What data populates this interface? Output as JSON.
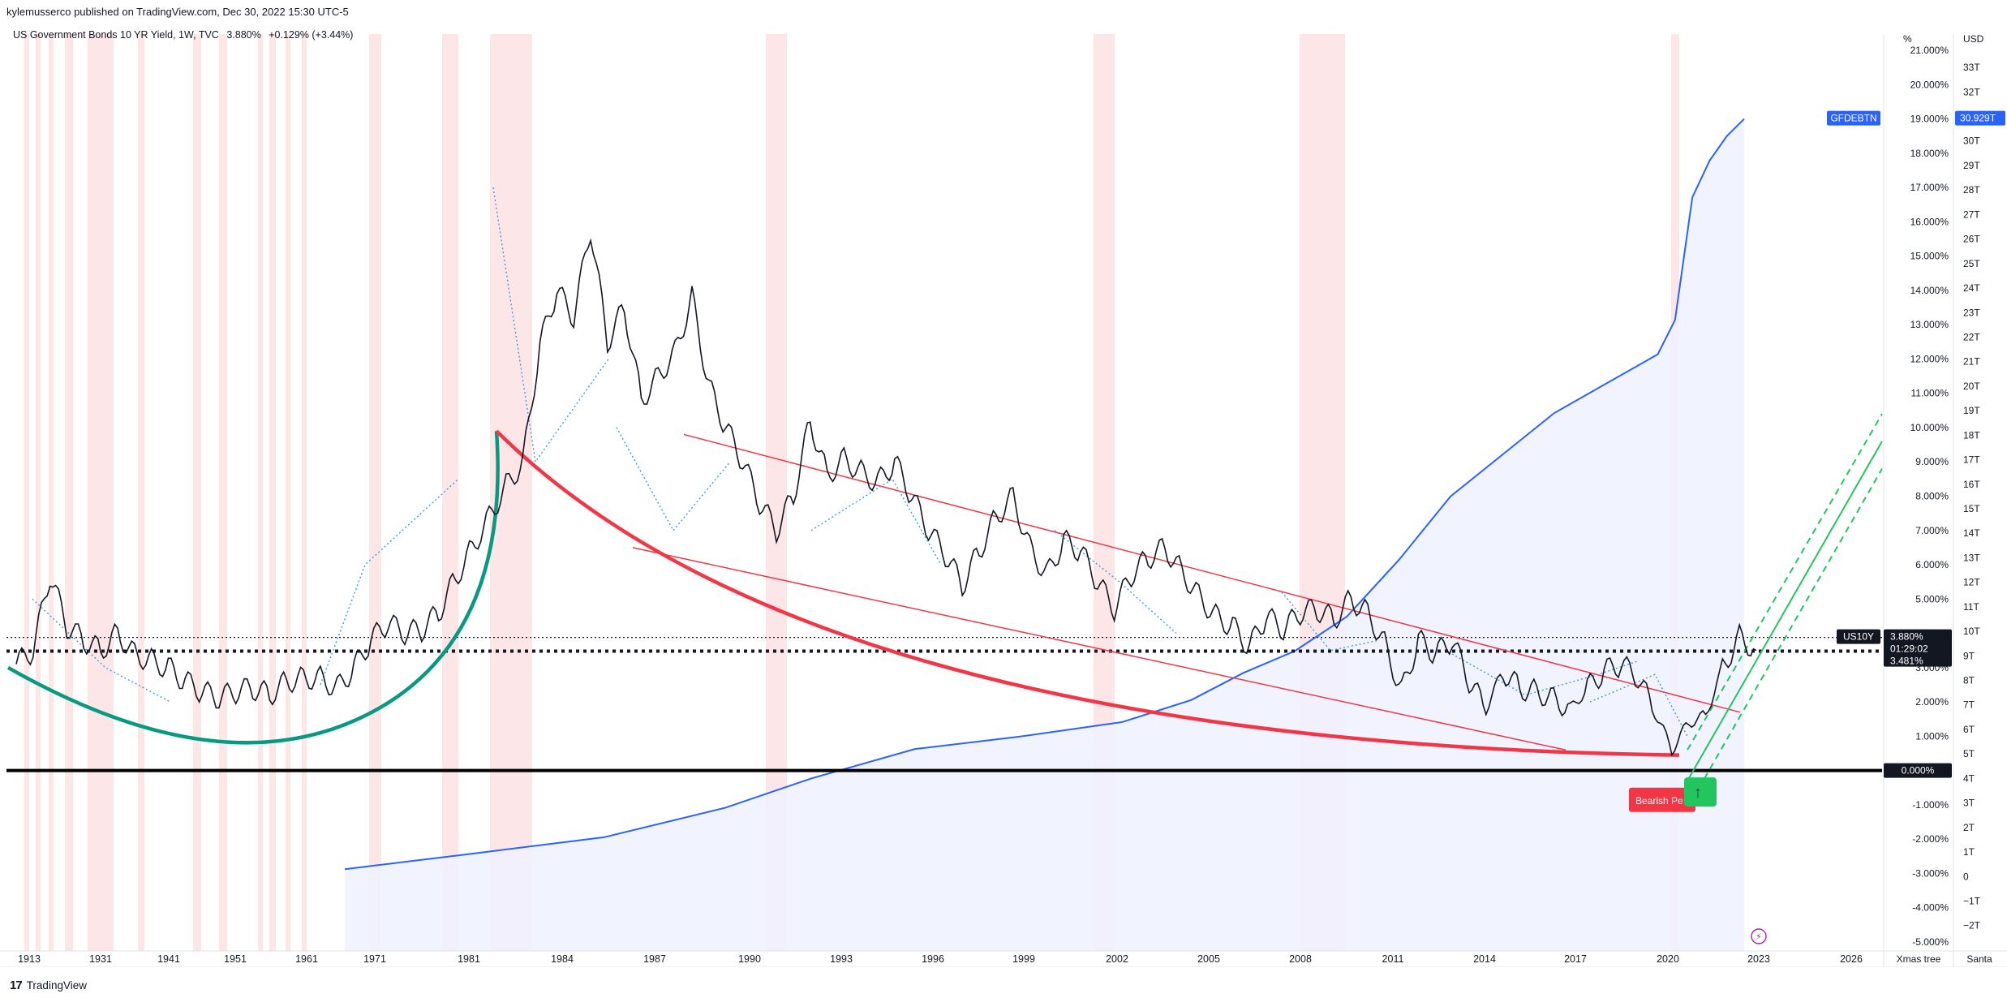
{
  "publisher_line": "kylemusserco published on TradingView.com, Dec 30, 2022 15:30 UTC-5",
  "header": {
    "symbol": "US Government Bonds 10 YR Yield, 1W, TVC",
    "last": "3.880%",
    "change": "+0.129% (+3.44%)"
  },
  "brand": {
    "logo": "17",
    "name": "TradingView"
  },
  "colors": {
    "yield": "#131722",
    "debt": "#2962ff",
    "debt_fill": "#eef1ff",
    "channel": "#f23645",
    "bowl": "#089981",
    "recession": "#fde3e5",
    "projection": "#22c55e",
    "fib": "#3a9bd9"
  },
  "chart_data": {
    "type": "line",
    "title": "US Government Bonds 10 YR Yield, 1W, TVC",
    "x_labels": [
      "1913",
      "1931",
      "1941",
      "1951",
      "1961",
      "1971",
      "1981",
      "1984",
      "1987",
      "1990",
      "1993",
      "1996",
      "1999",
      "2002",
      "2005",
      "2008",
      "2011",
      "2014",
      "2017",
      "2020",
      "2023",
      "2026"
    ],
    "y_left_unit": "%",
    "y_left_ticks": [
      "21.000%",
      "20.000%",
      "19.000%",
      "18.000%",
      "17.000%",
      "16.000%",
      "15.000%",
      "14.000%",
      "13.000%",
      "12.000%",
      "11.000%",
      "10.000%",
      "9.000%",
      "8.000%",
      "7.000%",
      "6.000%",
      "5.000%",
      "4.000%",
      "3.000%",
      "2.000%",
      "1.000%",
      "0.000%",
      "-1.000%",
      "-2.000%",
      "-3.000%",
      "-4.000%",
      "-5.000%"
    ],
    "y_left_range": [
      -5.3,
      21.5
    ],
    "y_right_unit": "USD",
    "y_right_ticks": [
      "33T",
      "32T",
      "31T",
      "30T",
      "29T",
      "28T",
      "27T",
      "26T",
      "25T",
      "24T",
      "23T",
      "22T",
      "21T",
      "20T",
      "19T",
      "18T",
      "17T",
      "16T",
      "15T",
      "14T",
      "13T",
      "12T",
      "11T",
      "10T",
      "9T",
      "8T",
      "7T",
      "6T",
      "5T",
      "4T",
      "3T",
      "2T",
      "1T",
      "0",
      "−1T",
      "−2T"
    ],
    "series": [
      {
        "name": "US10Y",
        "values": [
          [
            0,
            3.1
          ],
          [
            1,
            3.5
          ],
          [
            2,
            5.7
          ],
          [
            3,
            4.2
          ],
          [
            4,
            3.8
          ],
          [
            5,
            3.5
          ],
          [
            6,
            4.0
          ],
          [
            7,
            3.4
          ],
          [
            8,
            3.2
          ],
          [
            9,
            3.0
          ],
          [
            10,
            2.6
          ],
          [
            11,
            2.3
          ],
          [
            12,
            2.1
          ],
          [
            13,
            2.3
          ],
          [
            14,
            2.4
          ],
          [
            15,
            2.2
          ],
          [
            16,
            2.6
          ],
          [
            17,
            2.7
          ],
          [
            18,
            2.7
          ],
          [
            19,
            2.4
          ],
          [
            20,
            3.0
          ],
          [
            21,
            3.8
          ],
          [
            22,
            4.3
          ],
          [
            23,
            4.0
          ],
          [
            24,
            4.1
          ],
          [
            25,
            4.6
          ],
          [
            26,
            5.6
          ],
          [
            27,
            6.5
          ],
          [
            28,
            7.4
          ],
          [
            29,
            8.3
          ],
          [
            30,
            9.0
          ],
          [
            31,
            12.4
          ],
          [
            32,
            14.0
          ],
          [
            33,
            13.2
          ],
          [
            34,
            15.8
          ],
          [
            35,
            12.5
          ],
          [
            36,
            13.5
          ],
          [
            37,
            10.8
          ],
          [
            38,
            11.5
          ],
          [
            39,
            12.2
          ],
          [
            40,
            13.8
          ],
          [
            41,
            11.2
          ],
          [
            42,
            10.0
          ],
          [
            43,
            9.0
          ],
          [
            44,
            7.8
          ],
          [
            45,
            7.0
          ],
          [
            46,
            8.0
          ],
          [
            47,
            10.2
          ],
          [
            48,
            8.6
          ],
          [
            49,
            9.1
          ],
          [
            50,
            8.7
          ],
          [
            51,
            8.4
          ],
          [
            52,
            9.0
          ],
          [
            53,
            8.0
          ],
          [
            54,
            7.0
          ],
          [
            55,
            6.3
          ],
          [
            56,
            5.4
          ],
          [
            57,
            6.4
          ],
          [
            58,
            7.4
          ],
          [
            59,
            8.0
          ],
          [
            60,
            6.5
          ],
          [
            61,
            5.7
          ],
          [
            62,
            6.7
          ],
          [
            63,
            6.4
          ],
          [
            64,
            5.5
          ],
          [
            65,
            4.7
          ],
          [
            66,
            5.7
          ],
          [
            67,
            6.2
          ],
          [
            68,
            6.5
          ],
          [
            69,
            5.8
          ],
          [
            70,
            5.1
          ],
          [
            71,
            4.5
          ],
          [
            72,
            4.2
          ],
          [
            73,
            3.6
          ],
          [
            74,
            4.5
          ],
          [
            75,
            4.1
          ],
          [
            76,
            4.6
          ],
          [
            77,
            4.7
          ],
          [
            78,
            4.4
          ],
          [
            79,
            5.0
          ],
          [
            80,
            4.6
          ],
          [
            81,
            3.7
          ],
          [
            82,
            2.3
          ],
          [
            83,
            3.8
          ],
          [
            84,
            3.4
          ],
          [
            85,
            3.8
          ],
          [
            86,
            2.6
          ],
          [
            87,
            1.8
          ],
          [
            88,
            2.9
          ],
          [
            89,
            2.4
          ],
          [
            90,
            2.3
          ],
          [
            91,
            2.1
          ],
          [
            92,
            1.8
          ],
          [
            93,
            2.4
          ],
          [
            94,
            2.9
          ],
          [
            95,
            3.1
          ],
          [
            96,
            2.7
          ],
          [
            97,
            1.7
          ],
          [
            98,
            0.6
          ],
          [
            99,
            1.4
          ],
          [
            100,
            1.6
          ],
          [
            101,
            3.0
          ],
          [
            102,
            3.9
          ],
          [
            103,
            3.5
          ]
        ]
      },
      {
        "name": "GFDEBTN",
        "unit": "USD trillions",
        "values": [
          [
            23,
            0.3
          ],
          [
            30,
            0.9
          ],
          [
            38,
            1.6
          ],
          [
            45,
            2.8
          ],
          [
            50,
            4.0
          ],
          [
            56,
            5.2
          ],
          [
            62,
            5.7
          ],
          [
            68,
            6.3
          ],
          [
            72,
            7.2
          ],
          [
            75,
            8.3
          ],
          [
            78,
            9.2
          ],
          [
            81,
            10.6
          ],
          [
            84,
            12.9
          ],
          [
            87,
            15.5
          ],
          [
            90,
            17.2
          ],
          [
            93,
            18.9
          ],
          [
            96,
            20.1
          ],
          [
            99,
            21.3
          ],
          [
            100,
            22.7
          ],
          [
            101,
            27.7
          ],
          [
            102,
            29.2
          ],
          [
            103,
            30.2
          ],
          [
            104,
            30.9
          ]
        ]
      }
    ],
    "price_labels": [
      {
        "symbol": "US10Y",
        "lines": [
          "3.880%",
          "01:29:02",
          "3.481%"
        ]
      },
      {
        "symbol": "GFDEBTN",
        "lines": [
          "30.929T"
        ]
      },
      {
        "symbol": "zero",
        "lines": [
          "0.000%"
        ]
      }
    ],
    "horizontal_lines": [
      3.88,
      3.481,
      0.0
    ],
    "annotations": [
      "Bearish Pe"
    ],
    "bottom_right_labels": [
      "Xmas tree",
      "Santa"
    ],
    "legend": "none"
  }
}
